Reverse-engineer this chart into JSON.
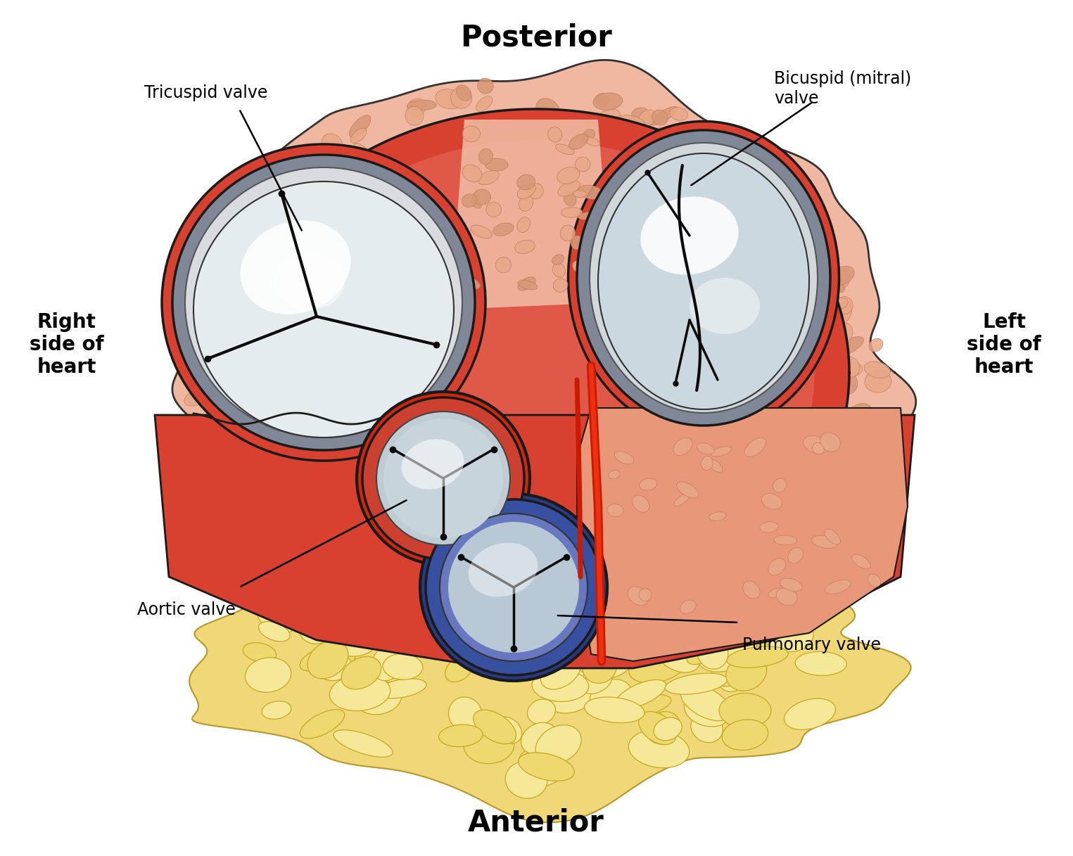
{
  "title_top": "Posterior",
  "title_bottom": "Anterior",
  "label_right_side": "Left\nside of\nheart",
  "label_left_side": "Right\nside of\nheart",
  "label_tricuspid": "Tricuspid valve",
  "label_bicuspid": "Bicuspid (mitral)\nvalve",
  "label_aortic": "Aortic valve",
  "label_pulmonary": "Pulmonary valve",
  "bg_color": "#ffffff",
  "pink_outer": "#f0b8a0",
  "pink_medium": "#e89888",
  "red_dark": "#c03020",
  "red_medium": "#d84030",
  "red_bright": "#e05040",
  "salmon": "#e8a080",
  "gray_valve": "#b8c8d0",
  "white_valve": "#e8eef2",
  "fat_yellow": "#f0d878",
  "fat_light": "#f5e898",
  "aortic_red": "#cc2810",
  "pulmonary_blue": "#3850a0",
  "pulmonary_blue_inner": "#6878c0",
  "line_black": "#111111",
  "line_dark": "#222222"
}
